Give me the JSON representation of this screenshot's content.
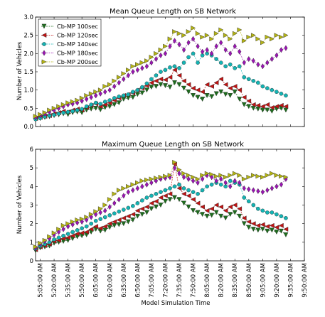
{
  "x_tick_labels": [
    "5:05:00 AM",
    "5:20:00 AM",
    "5:35:00 AM",
    "5:50:00 AM",
    "6:05:00 AM",
    "6:20:00 AM",
    "6:35:00 AM",
    "6:50:00 AM",
    "7:05:00 AM",
    "7:20:00 AM",
    "7:35:00 AM",
    "7:50:00 AM",
    "8:05:00 AM",
    "8:20:00 AM",
    "8:35:00 AM",
    "8:50:00 AM",
    "9:05:00 AM",
    "9:20:00 AM",
    "9:35:00 AM",
    "9:50:00 AM"
  ],
  "xlabel": "Model Simulation Time",
  "series_styles": [
    {
      "name": "Cb-MP 100sec",
      "color": "#1d6e1d",
      "marker": "triangle-down"
    },
    {
      "name": "Cb-MP 120sec",
      "color": "#c01515",
      "marker": "triangle-left"
    },
    {
      "name": "Cb-MP 140sec",
      "color": "#14b4b4",
      "marker": "circle"
    },
    {
      "name": "Cb-MP 180sec",
      "color": "#9b14b4",
      "marker": "diamond"
    },
    {
      "name": "Cb-MP 200sec",
      "color": "#b4b414",
      "marker": "triangle-right"
    }
  ],
  "chart_data": [
    {
      "type": "line",
      "title": "Mean Queue Length on SB Network",
      "ylabel": "Number of Vehicles",
      "ylim": [
        0,
        3.0
      ],
      "yticks": [
        "0.0",
        "0.5",
        "1.0",
        "1.5",
        "2.0",
        "2.5",
        "3.0"
      ],
      "legend": "top-left",
      "x_interval_minutes": 5,
      "x_start": "5:00:00 AM",
      "series": [
        {
          "name": "Cb-MP 100sec",
          "values": [
            0.2,
            0.22,
            0.25,
            0.27,
            0.3,
            0.32,
            0.35,
            0.33,
            0.38,
            0.4,
            0.38,
            0.45,
            0.48,
            0.5,
            0.46,
            0.52,
            0.55,
            0.6,
            0.65,
            0.75,
            0.78,
            0.8,
            0.88,
            0.92,
            1.0,
            1.08,
            1.1,
            1.15,
            1.12,
            1.08,
            1.2,
            1.15,
            1.05,
            0.95,
            0.85,
            0.8,
            0.75,
            0.85,
            0.82,
            0.9,
            0.95,
            0.88,
            0.85,
            0.95,
            0.75,
            0.6,
            0.55,
            0.5,
            0.48,
            0.45,
            0.45,
            0.42,
            0.48,
            0.5,
            0.45
          ]
        },
        {
          "name": "Cb-MP 120sec",
          "values": [
            0.22,
            0.25,
            0.28,
            0.3,
            0.35,
            0.38,
            0.42,
            0.4,
            0.45,
            0.48,
            0.45,
            0.52,
            0.58,
            0.62,
            0.55,
            0.6,
            0.65,
            0.72,
            0.78,
            0.85,
            0.88,
            0.92,
            1.0,
            1.05,
            1.12,
            1.2,
            1.25,
            1.3,
            1.28,
            1.35,
            1.55,
            1.4,
            1.25,
            1.15,
            1.05,
            1.0,
            0.95,
            1.15,
            1.1,
            1.2,
            1.3,
            1.15,
            1.05,
            1.1,
            1.0,
            0.8,
            0.7,
            0.6,
            0.58,
            0.55,
            0.6,
            0.52,
            0.55,
            0.58,
            0.55
          ]
        },
        {
          "name": "Cb-MP 140sec",
          "values": [
            0.2,
            0.23,
            0.27,
            0.3,
            0.32,
            0.35,
            0.38,
            0.4,
            0.42,
            0.45,
            0.48,
            0.55,
            0.6,
            0.65,
            0.62,
            0.68,
            0.72,
            0.78,
            0.82,
            0.85,
            0.88,
            0.95,
            1.0,
            1.08,
            1.18,
            1.3,
            1.4,
            1.5,
            1.55,
            1.62,
            1.65,
            1.6,
            1.75,
            1.9,
            2.0,
            1.75,
            1.95,
            2.0,
            1.95,
            1.85,
            1.75,
            1.65,
            1.7,
            1.6,
            1.65,
            1.35,
            1.3,
            1.25,
            1.2,
            1.1,
            1.05,
            1.0,
            0.95,
            0.9,
            0.85
          ]
        },
        {
          "name": "Cb-MP 180sec",
          "values": [
            0.25,
            0.3,
            0.35,
            0.4,
            0.45,
            0.5,
            0.55,
            0.6,
            0.62,
            0.65,
            0.7,
            0.75,
            0.8,
            0.85,
            0.9,
            0.95,
            1.0,
            1.1,
            1.2,
            1.3,
            1.4,
            1.5,
            1.55,
            1.6,
            1.65,
            1.75,
            1.85,
            1.95,
            2.0,
            2.2,
            2.35,
            2.25,
            2.1,
            2.3,
            2.4,
            2.2,
            2.05,
            2.1,
            2.0,
            2.2,
            2.3,
            2.1,
            2.0,
            2.2,
            2.05,
            1.75,
            1.85,
            1.8,
            1.7,
            1.65,
            1.75,
            1.85,
            1.95,
            2.1,
            2.15
          ]
        },
        {
          "name": "Cb-MP 200sec",
          "values": [
            0.28,
            0.33,
            0.38,
            0.45,
            0.5,
            0.55,
            0.6,
            0.65,
            0.68,
            0.72,
            0.78,
            0.85,
            0.9,
            0.95,
            1.0,
            1.1,
            1.15,
            1.25,
            1.35,
            1.45,
            1.55,
            1.65,
            1.7,
            1.75,
            1.8,
            1.9,
            2.0,
            2.1,
            2.2,
            2.4,
            2.6,
            2.55,
            2.5,
            2.6,
            2.7,
            2.55,
            2.45,
            2.5,
            2.4,
            2.55,
            2.65,
            2.5,
            2.4,
            2.55,
            2.65,
            2.35,
            2.45,
            2.5,
            2.4,
            2.3,
            2.45,
            2.4,
            2.5,
            2.45,
            2.5
          ]
        }
      ]
    },
    {
      "type": "line",
      "title": "Maximum Queue Length on SB Network",
      "ylabel": "Number of Vehicles",
      "ylim": [
        0,
        6
      ],
      "yticks": [
        "0",
        "1",
        "2",
        "3",
        "4",
        "5",
        "6"
      ],
      "x_interval_minutes": 5,
      "x_start": "5:00:00 AM",
      "series": [
        {
          "name": "Cb-MP 100sec",
          "values": [
            0.55,
            0.7,
            0.75,
            0.8,
            0.95,
            1.0,
            1.05,
            1.1,
            1.2,
            1.3,
            1.35,
            1.4,
            1.55,
            1.7,
            1.6,
            1.65,
            1.8,
            1.9,
            1.95,
            2.0,
            2.1,
            2.2,
            2.4,
            2.5,
            2.6,
            2.8,
            2.9,
            3.0,
            3.2,
            3.3,
            3.4,
            3.3,
            3.1,
            2.9,
            2.7,
            2.6,
            2.5,
            2.4,
            2.45,
            2.6,
            2.4,
            2.3,
            2.5,
            2.6,
            2.4,
            2.0,
            1.8,
            1.7,
            1.65,
            1.7,
            1.6,
            1.65,
            1.55,
            1.6,
            1.4
          ]
        },
        {
          "name": "Cb-MP 120sec",
          "values": [
            0.6,
            0.75,
            0.82,
            0.9,
            1.05,
            1.1,
            1.2,
            1.25,
            1.35,
            1.45,
            1.5,
            1.55,
            1.7,
            1.85,
            1.75,
            1.85,
            2.0,
            2.1,
            2.2,
            2.3,
            2.4,
            2.5,
            2.7,
            2.8,
            2.9,
            3.1,
            3.2,
            3.4,
            3.5,
            3.6,
            5.2,
            3.9,
            3.6,
            3.5,
            3.3,
            3.1,
            2.9,
            2.7,
            2.8,
            3.0,
            2.9,
            2.7,
            2.9,
            3.0,
            2.8,
            2.3,
            2.1,
            2.0,
            1.9,
            1.95,
            1.85,
            1.9,
            1.8,
            1.9,
            1.7
          ]
        },
        {
          "name": "Cb-MP 140sec",
          "values": [
            0.65,
            0.8,
            0.9,
            1.0,
            1.15,
            1.25,
            1.35,
            1.45,
            1.55,
            1.65,
            1.75,
            1.85,
            2.0,
            2.15,
            2.25,
            2.35,
            2.45,
            2.55,
            2.65,
            2.75,
            2.85,
            2.95,
            3.1,
            3.25,
            3.4,
            3.5,
            3.6,
            3.7,
            3.8,
            3.9,
            4.0,
            4.1,
            3.9,
            3.8,
            3.7,
            3.6,
            3.8,
            4.0,
            4.1,
            4.2,
            4.1,
            4.0,
            4.3,
            4.2,
            4.1,
            3.4,
            3.2,
            3.0,
            2.8,
            2.7,
            2.6,
            2.6,
            2.5,
            2.4,
            2.3
          ]
        },
        {
          "name": "Cb-MP 180sec",
          "values": [
            0.7,
            0.9,
            1.05,
            1.2,
            1.4,
            1.55,
            1.7,
            1.85,
            1.95,
            2.05,
            2.1,
            2.2,
            2.35,
            2.5,
            2.6,
            2.7,
            2.9,
            3.1,
            3.3,
            3.5,
            3.7,
            3.8,
            3.9,
            4.0,
            4.1,
            4.2,
            4.3,
            4.4,
            4.45,
            4.5,
            5.0,
            4.7,
            4.5,
            4.4,
            4.3,
            4.2,
            4.4,
            4.6,
            4.5,
            4.3,
            4.4,
            4.2,
            4.0,
            4.3,
            4.2,
            3.9,
            3.85,
            3.8,
            3.75,
            3.7,
            3.8,
            3.9,
            4.0,
            4.1,
            4.4
          ]
        },
        {
          "name": "Cb-MP 200sec",
          "values": [
            0.75,
            0.95,
            1.1,
            1.3,
            1.5,
            1.7,
            1.9,
            2.0,
            2.1,
            2.2,
            2.25,
            2.35,
            2.5,
            2.65,
            2.8,
            3.0,
            3.3,
            3.6,
            3.8,
            3.9,
            4.0,
            4.1,
            4.2,
            4.3,
            4.35,
            4.4,
            4.45,
            4.5,
            4.55,
            4.6,
            5.3,
            4.9,
            4.7,
            4.6,
            4.5,
            4.4,
            4.6,
            4.7,
            4.65,
            4.55,
            4.6,
            4.5,
            4.6,
            4.7,
            4.6,
            4.4,
            4.5,
            4.6,
            4.55,
            4.5,
            4.6,
            4.7,
            4.6,
            4.55,
            4.5
          ]
        }
      ]
    }
  ]
}
